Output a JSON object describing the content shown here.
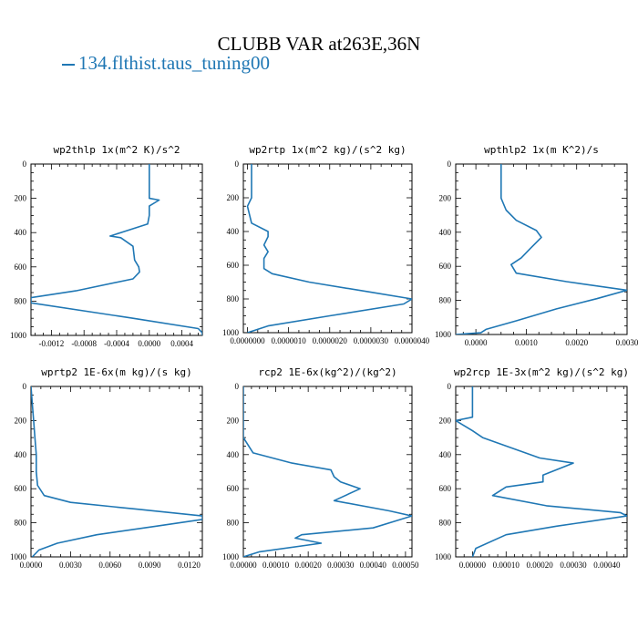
{
  "title": "CLUBB VAR at263E,36N",
  "legend": {
    "label": "134.flthist.taus_tuning00",
    "color": "#1f77b4"
  },
  "chart_data": [
    {
      "type": "line",
      "title": "wp2thlp  1x(m^2 K)/s^2",
      "xlim": [
        -0.00145,
        0.00065
      ],
      "ylim": [
        1000,
        0
      ],
      "xticks": [
        -0.0012,
        -0.0008,
        -0.0004,
        0.0,
        0.0004
      ],
      "xticklabels": [
        "-0.0012",
        "-0.0008",
        "-0.0004",
        "0.0000",
        "0.0004"
      ],
      "yticks": [
        0,
        200,
        400,
        600,
        800,
        1000
      ],
      "series": [
        {
          "x": [
            0.0,
            0.0,
            0.0,
            0.00012,
            0.0,
            0.0,
            -2e-05,
            -0.00048,
            -0.00035,
            -0.0002,
            -0.00018,
            -0.00013,
            -0.00012,
            -0.0002,
            -0.0009,
            -0.00145,
            -0.00145,
            -0.0002,
            0.0006,
            0.00065,
            0.00065
          ],
          "y": [
            0,
            100,
            200,
            210,
            245,
            300,
            350,
            420,
            430,
            480,
            560,
            600,
            630,
            670,
            740,
            780,
            810,
            900,
            960,
            985,
            1000
          ]
        }
      ]
    },
    {
      "type": "line",
      "title": "wp2rtp  1x(m^2 kg)/(s^2 kg)",
      "xlim": [
        -1e-07,
        4e-06
      ],
      "ylim": [
        1000,
        0
      ],
      "xticks": [
        0.0,
        1e-06,
        2e-06,
        3e-06,
        4e-06
      ],
      "xticklabels": [
        "0.0000000",
        "0.0000010",
        "0.0000020",
        "0.0000030",
        "0.0000040"
      ],
      "yticks": [
        0,
        200,
        400,
        600,
        800,
        1000
      ],
      "series": [
        {
          "x": [
            1e-07,
            1e-07,
            1e-07,
            0.0,
            1e-07,
            5e-07,
            5e-07,
            4e-07,
            5e-07,
            4e-07,
            4e-07,
            6e-07,
            1.5e-06,
            3e-06,
            4e-06,
            3.8e-06,
            2e-06,
            5e-07,
            0.0
          ],
          "y": [
            0,
            100,
            200,
            250,
            350,
            400,
            430,
            480,
            520,
            560,
            620,
            650,
            700,
            760,
            800,
            830,
            900,
            960,
            1000
          ]
        }
      ]
    },
    {
      "type": "line",
      "title": "wpthlp2  1x(m K^2)/s",
      "xlim": [
        -0.0004,
        0.003
      ],
      "ylim": [
        1000,
        0
      ],
      "xticks": [
        0.0,
        0.001,
        0.002,
        0.003
      ],
      "xticklabels": [
        "0.0000",
        "0.0010",
        "0.0020",
        "0.0030"
      ],
      "yticks": [
        0,
        200,
        400,
        600,
        800,
        1000
      ],
      "series": [
        {
          "x": [
            0.0005,
            0.0005,
            0.0005,
            0.0006,
            0.0008,
            0.0012,
            0.0013,
            0.0011,
            0.0009,
            0.0007,
            0.0008,
            0.0018,
            0.003,
            0.0024,
            0.0016,
            0.0008,
            0.0002,
            0.0001,
            -0.0004
          ],
          "y": [
            0,
            100,
            200,
            270,
            330,
            390,
            430,
            490,
            550,
            590,
            640,
            690,
            740,
            790,
            850,
            920,
            970,
            990,
            1000
          ]
        }
      ]
    },
    {
      "type": "line",
      "title": "wprtp2  1E-6x(m kg)/(s kg)",
      "xlim": [
        0.0,
        0.013
      ],
      "ylim": [
        1000,
        0
      ],
      "xticks": [
        0.0,
        0.003,
        0.006,
        0.009,
        0.012
      ],
      "xticklabels": [
        "0.0000",
        "0.0030",
        "0.0060",
        "0.0090",
        "0.0120"
      ],
      "yticks": [
        0,
        200,
        400,
        600,
        800,
        1000
      ],
      "series": [
        {
          "x": [
            0.0,
            0.0001,
            0.0002,
            0.0003,
            0.0004,
            0.0004,
            0.0005,
            0.001,
            0.003,
            0.008,
            0.013,
            0.013,
            0.0095,
            0.005,
            0.002,
            0.0006,
            0.0001
          ],
          "y": [
            0,
            100,
            200,
            300,
            400,
            500,
            580,
            640,
            680,
            720,
            760,
            780,
            820,
            870,
            920,
            960,
            1000
          ]
        }
      ]
    },
    {
      "type": "line",
      "title": "rcp2  1E-6x(kg^2)/(kg^2)",
      "xlim": [
        0.0,
        0.00052
      ],
      "ylim": [
        1000,
        0
      ],
      "xticks": [
        0.0,
        0.0001,
        0.0002,
        0.0003,
        0.0004,
        0.0005
      ],
      "xticklabels": [
        "0.00000",
        "0.00010",
        "0.00020",
        "0.00030",
        "0.00040",
        "0.00050"
      ],
      "yticks": [
        0,
        200,
        400,
        600,
        800,
        1000
      ],
      "series": [
        {
          "x": [
            0.0,
            0.0,
            0.0,
            0.0,
            3e-05,
            0.00015,
            0.00027,
            0.00028,
            0.0003,
            0.00036,
            0.00028,
            0.00045,
            0.00052,
            0.0004,
            0.00018,
            0.00016,
            0.00024,
            5e-05,
            0.0
          ],
          "y": [
            0,
            100,
            200,
            300,
            390,
            450,
            490,
            530,
            560,
            600,
            670,
            730,
            760,
            830,
            870,
            890,
            920,
            970,
            1000
          ]
        }
      ]
    },
    {
      "type": "line",
      "title": "wp2rcp  1E-3x(m^2 kg)/(s^2 kg)",
      "xlim": [
        -5e-05,
        0.00046
      ],
      "ylim": [
        1000,
        0
      ],
      "xticks": [
        0.0,
        0.0001,
        0.0002,
        0.0003,
        0.0004
      ],
      "xticklabels": [
        "0.00000",
        "0.00010",
        "0.00020",
        "0.00030",
        "0.00040"
      ],
      "yticks": [
        0,
        200,
        400,
        600,
        800,
        1000
      ],
      "series": [
        {
          "x": [
            0.0,
            0.0,
            0.0,
            -5e-05,
            0.0,
            3e-05,
            0.0002,
            0.0003,
            0.00021,
            0.00021,
            0.0001,
            6e-05,
            0.00022,
            0.00044,
            0.00046,
            0.00025,
            0.0001,
            1e-05,
            0.0
          ],
          "y": [
            0,
            100,
            180,
            200,
            260,
            300,
            420,
            450,
            520,
            560,
            590,
            640,
            700,
            740,
            760,
            820,
            870,
            950,
            1000
          ]
        }
      ]
    }
  ]
}
